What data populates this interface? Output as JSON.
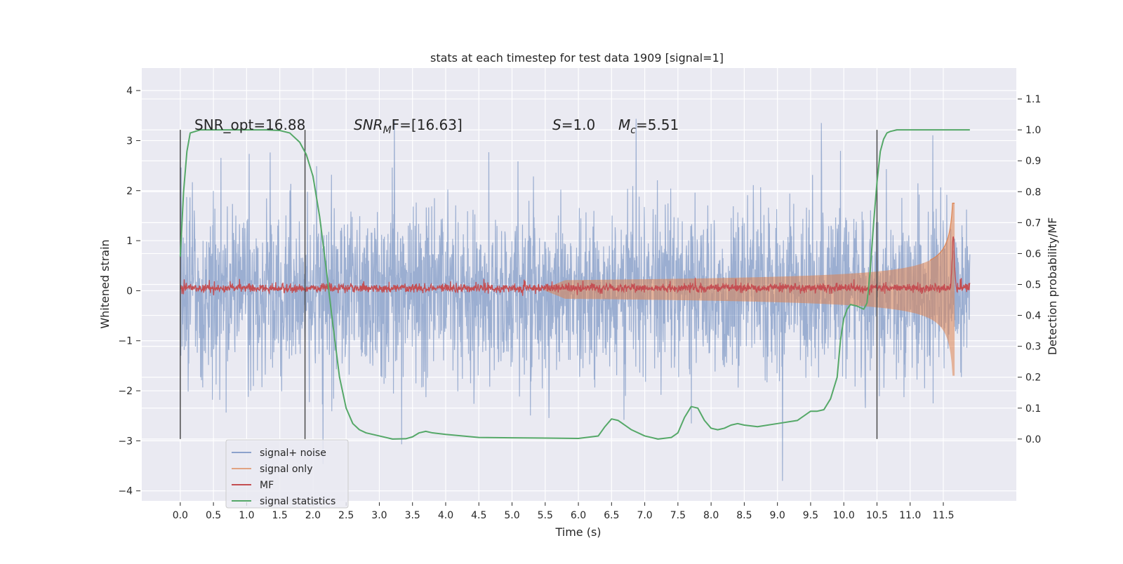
{
  "chart_data": {
    "type": "line",
    "title": "stats at each timestep for test data 1909 [signal=1]",
    "xlabel": "Time (s)",
    "ylabel_left": "Whitened strain",
    "ylabel_right": "Detection probability/MF",
    "xlim": [
      -0.58,
      12.6
    ],
    "ylim_left": [
      -4.2,
      4.45
    ],
    "ylim_right": [
      -0.2,
      1.2
    ],
    "x_ticks": [
      "0.0",
      "0.5",
      "1.0",
      "1.5",
      "2.0",
      "2.5",
      "3.0",
      "3.5",
      "4.0",
      "4.5",
      "5.0",
      "5.5",
      "6.0",
      "6.5",
      "7.0",
      "7.5",
      "8.0",
      "8.5",
      "9.0",
      "9.5",
      "10.0",
      "10.5",
      "11.0",
      "11.5"
    ],
    "y_ticks_left": [
      "4",
      "3",
      "2",
      "1",
      "0",
      "−1",
      "−2",
      "−3",
      "−4"
    ],
    "y_ticks_right": [
      "1.1",
      "1.0",
      "0.9",
      "0.8",
      "0.7",
      "0.6",
      "0.5",
      "0.4",
      "0.3",
      "0.2",
      "0.1",
      "0.0"
    ],
    "grid": true,
    "legend_position": "lower-left",
    "vertical_lines_s": [
      0.0,
      1.88,
      10.5
    ],
    "annotations": {
      "snr_opt": "SNR_opt=16.88",
      "snr_mf_prefix": "SNR",
      "snr_mf_sub": "M",
      "snr_mf_suffix": "F=[16.63]",
      "s_label": "S",
      "s_value": "=1.0",
      "mc_label": "M",
      "mc_sub": "c",
      "mc_value": "=5.51"
    },
    "series": [
      {
        "name": "signal+ noise",
        "color": "#4c72b0",
        "kind": "noise",
        "x_range": [
          0.0,
          11.9
        ],
        "amplitude": 1.3
      },
      {
        "name": "signal only",
        "color": "#dd8452",
        "kind": "chirp",
        "x_range": [
          0.0,
          11.67
        ],
        "peak": 1.7
      },
      {
        "name": "MF",
        "color": "#c44e52",
        "kind": "mf",
        "x_range": [
          0.0,
          11.9
        ],
        "peak": 1.0
      },
      {
        "name": "signal statistics",
        "color": "#55a868",
        "kind": "probability",
        "x": [
          0.0,
          0.05,
          0.1,
          0.15,
          0.3,
          0.6,
          1.0,
          1.3,
          1.5,
          1.65,
          1.8,
          1.9,
          2.0,
          2.1,
          2.2,
          2.3,
          2.4,
          2.5,
          2.6,
          2.7,
          2.8,
          3.0,
          3.2,
          3.4,
          3.5,
          3.6,
          3.7,
          3.8,
          4.0,
          4.5,
          5.0,
          5.5,
          6.0,
          6.3,
          6.4,
          6.5,
          6.6,
          6.8,
          7.0,
          7.2,
          7.4,
          7.5,
          7.6,
          7.7,
          7.8,
          7.85,
          7.9,
          8.0,
          8.1,
          8.2,
          8.3,
          8.4,
          8.5,
          8.7,
          9.0,
          9.3,
          9.5,
          9.6,
          9.7,
          9.8,
          9.9,
          9.95,
          10.0,
          10.05,
          10.1,
          10.2,
          10.3,
          10.35,
          10.4,
          10.45,
          10.5,
          10.55,
          10.6,
          10.65,
          10.7,
          10.8,
          11.0,
          11.5,
          11.9
        ],
        "y": [
          0.59,
          0.8,
          0.93,
          0.99,
          1.0,
          1.0,
          1.0,
          1.0,
          0.998,
          0.99,
          0.96,
          0.92,
          0.85,
          0.72,
          0.55,
          0.37,
          0.2,
          0.1,
          0.05,
          0.03,
          0.02,
          0.01,
          0.0,
          0.001,
          0.007,
          0.02,
          0.025,
          0.02,
          0.015,
          0.005,
          0.004,
          0.003,
          0.002,
          0.01,
          0.04,
          0.065,
          0.06,
          0.03,
          0.01,
          0.0,
          0.005,
          0.02,
          0.07,
          0.105,
          0.1,
          0.08,
          0.06,
          0.035,
          0.03,
          0.035,
          0.045,
          0.05,
          0.045,
          0.04,
          0.05,
          0.06,
          0.09,
          0.09,
          0.095,
          0.13,
          0.2,
          0.32,
          0.39,
          0.42,
          0.435,
          0.43,
          0.42,
          0.44,
          0.55,
          0.7,
          0.83,
          0.93,
          0.97,
          0.99,
          0.995,
          1.0,
          1.0,
          1.0,
          1.0
        ]
      }
    ]
  }
}
